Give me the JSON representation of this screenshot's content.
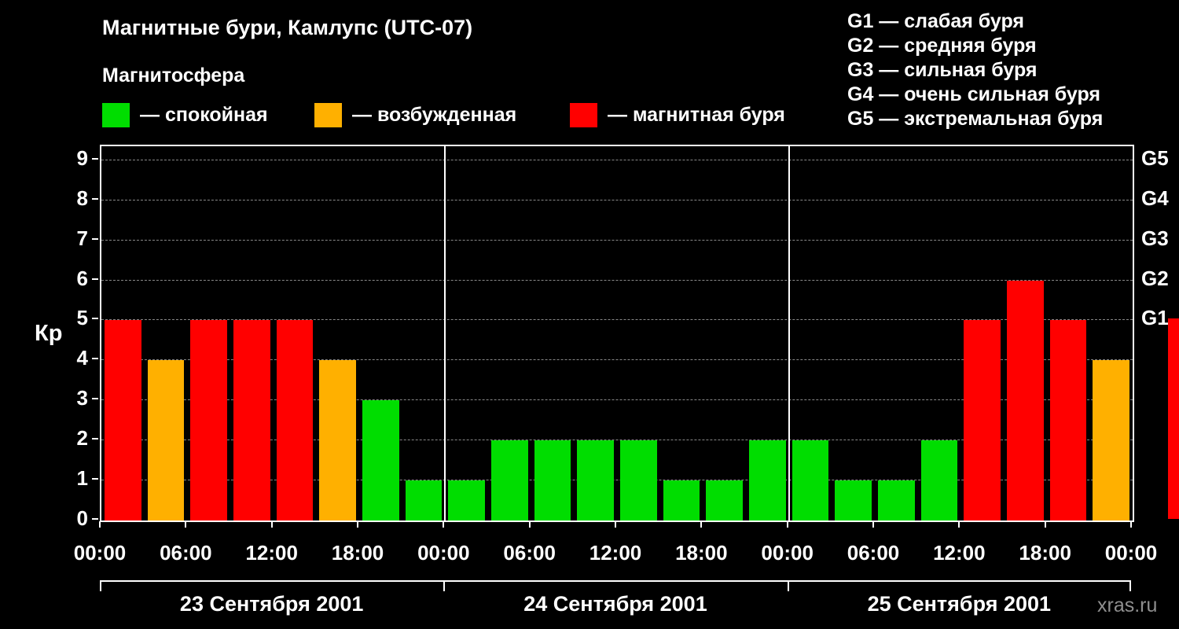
{
  "title": "Магнитные бури, Камлупс (UTC-07)",
  "subtitle": "Магнитосфера",
  "legend": {
    "quiet": {
      "label": "— спокойная",
      "color": "#00dd00"
    },
    "active": {
      "label": "— возбужденная",
      "color": "#ffb000"
    },
    "storm": {
      "label": "— магнитная буря",
      "color": "#ff0000"
    }
  },
  "g_legend": [
    "G1 — слабая буря",
    "G2 — средняя буря",
    "G3 — сильная буря",
    "G4 — очень сильная буря",
    "G5 — экстремальная буря"
  ],
  "watermark": "xras.ru",
  "chart_data": {
    "type": "bar",
    "title": "Магнитные бури, Камлупс (UTC-07)",
    "ylabel": "Кр",
    "ylim": [
      0,
      9.35
    ],
    "yticks": [
      0,
      1,
      2,
      3,
      4,
      5,
      6,
      7,
      8,
      9
    ],
    "right_axis": [
      {
        "label": "G1",
        "kp": 5
      },
      {
        "label": "G2",
        "kp": 6
      },
      {
        "label": "G3",
        "kp": 7
      },
      {
        "label": "G4",
        "kp": 8
      },
      {
        "label": "G5",
        "kp": 9
      }
    ],
    "x_tick_labels": [
      "00:00",
      "06:00",
      "12:00",
      "18:00",
      "00:00",
      "06:00",
      "12:00",
      "18:00",
      "00:00",
      "06:00",
      "12:00",
      "18:00",
      "00:00"
    ],
    "interval_hours": 3,
    "days": [
      {
        "label": "23 Сентября 2001",
        "values": [
          5,
          4,
          5,
          5,
          5,
          4,
          3,
          1
        ]
      },
      {
        "label": "24 Сентября 2001",
        "values": [
          1,
          2,
          2,
          2,
          2,
          1,
          1,
          2
        ]
      },
      {
        "label": "25 Сентября 2001",
        "values": [
          2,
          1,
          1,
          2,
          5,
          6,
          5,
          4
        ]
      }
    ],
    "next_partial_value": 5,
    "thresholds": {
      "active_min": 4,
      "storm_min": 5
    },
    "grid": "dashed-horizontal",
    "legend_position": "top"
  }
}
